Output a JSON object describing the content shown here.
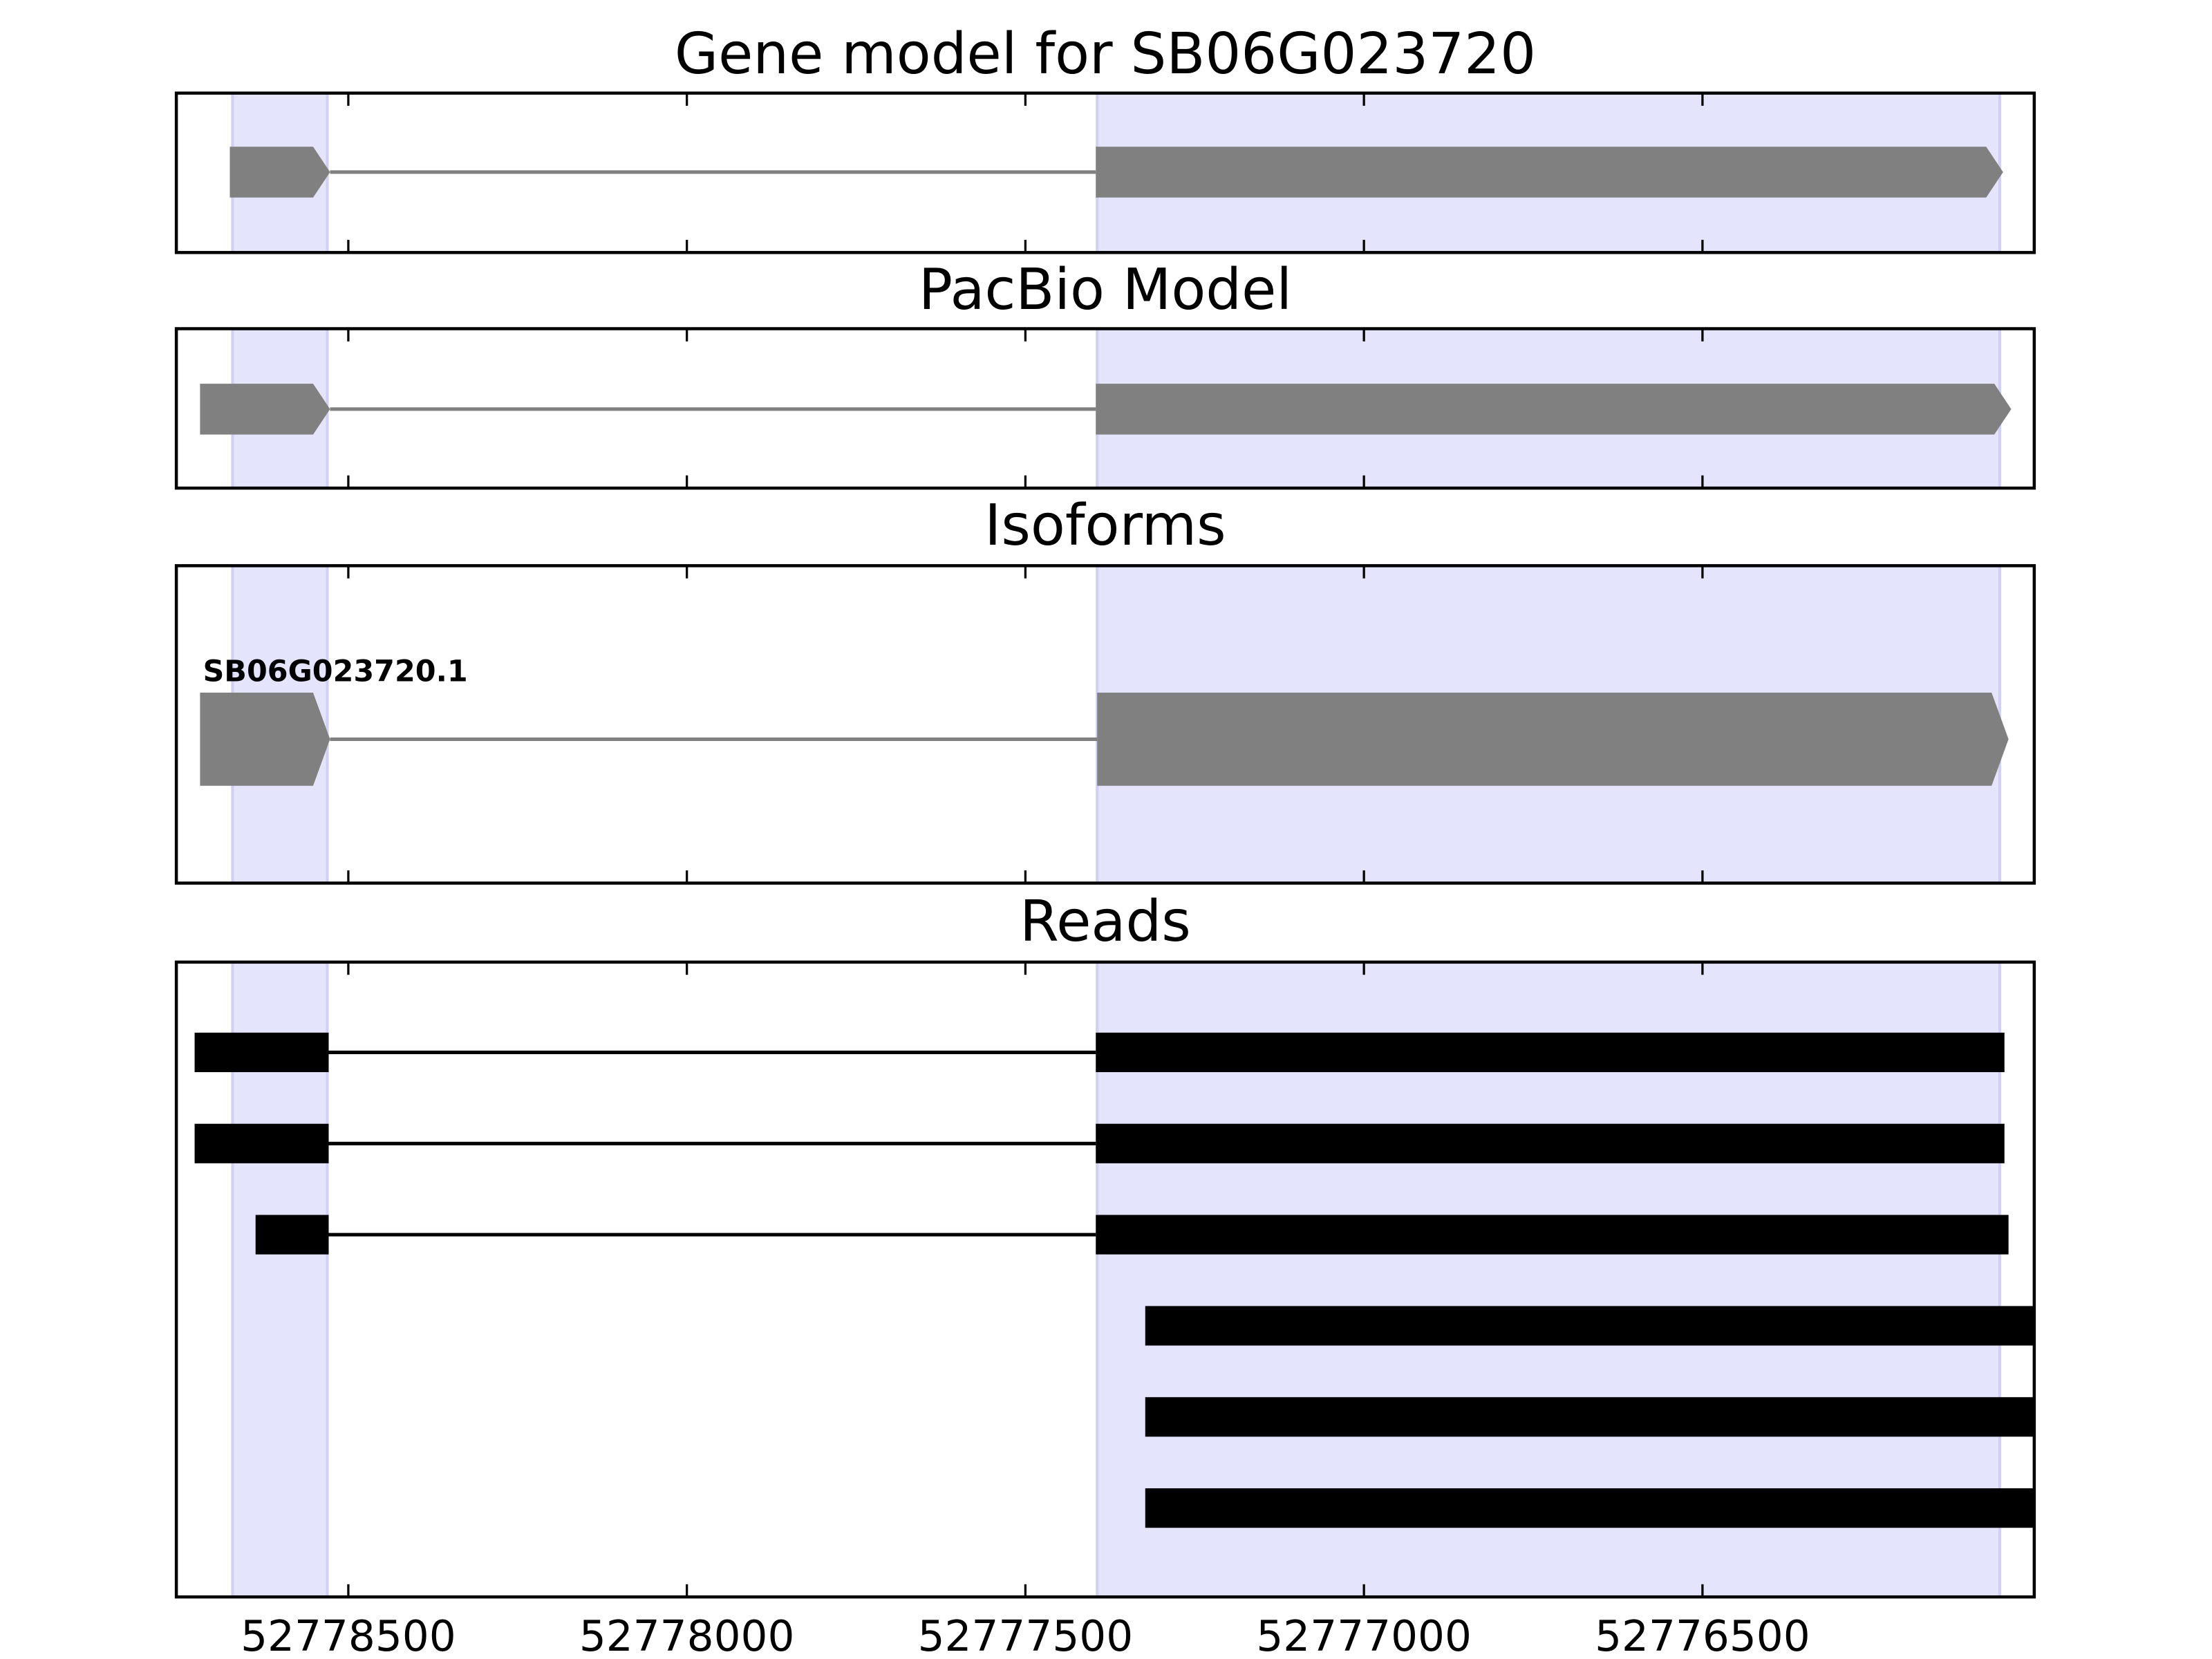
{
  "chart_data": {
    "type": "gene_tracks",
    "xlim": [
      52778754,
      52776010
    ],
    "xticks": [
      52778500,
      52778000,
      52777500,
      52777000,
      52776500
    ],
    "highlight_color": "#e4e4fc",
    "highlights": [
      [
        52778671,
        52778531
      ],
      [
        52777394,
        52776061
      ]
    ],
    "panels": [
      {
        "type": "gene_model",
        "title": "Gene model for SB06G023720",
        "color": "#808080",
        "transcripts": [
          {
            "exons": [
              [
                52778675,
                52778527
              ],
              [
                52777396,
                52776056
              ]
            ]
          }
        ]
      },
      {
        "type": "gene_model",
        "title": "PacBio Model",
        "color": "#808080",
        "transcripts": [
          {
            "exons": [
              [
                52778719,
                52778527
              ],
              [
                52777396,
                52776044
              ]
            ]
          }
        ]
      },
      {
        "type": "gene_model",
        "title": "Isoforms",
        "color": "#808080",
        "transcripts": [
          {
            "label": "SB06G023720.1",
            "exons": [
              [
                52778719,
                52778527
              ],
              [
                52777394,
                52776048
              ]
            ]
          }
        ]
      },
      {
        "type": "reads",
        "title": "Reads",
        "color": "#000000",
        "transcripts": [
          {
            "exons": [
              [
                52778727,
                52778529
              ],
              [
                52777396,
                52776054
              ]
            ]
          },
          {
            "exons": [
              [
                52778727,
                52778529
              ],
              [
                52777396,
                52776054
              ]
            ]
          },
          {
            "exons": [
              [
                52778637,
                52778529
              ],
              [
                52777396,
                52776048
              ]
            ]
          },
          {
            "exons": [
              [
                52777323,
                52776000
              ]
            ]
          },
          {
            "exons": [
              [
                52777323,
                52776000
              ]
            ]
          },
          {
            "exons": [
              [
                52777323,
                52776000
              ]
            ]
          }
        ]
      }
    ]
  }
}
